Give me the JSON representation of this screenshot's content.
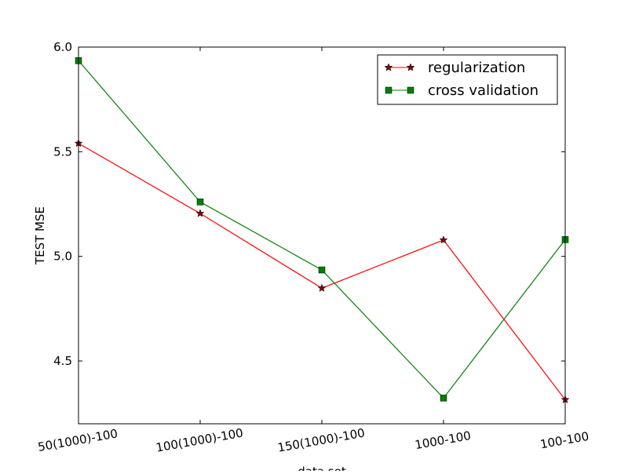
{
  "chart_data": {
    "type": "line",
    "categories": [
      "50(1000)-100",
      "100(1000)-100",
      "150(1000)-100",
      "1000-100",
      "100-100"
    ],
    "series": [
      {
        "name": "regularization",
        "values": [
          5.54,
          5.205,
          4.848,
          5.078,
          4.315
        ],
        "color": "#ff0000",
        "marker": "star"
      },
      {
        "name": "cross validation",
        "values": [
          5.935,
          5.26,
          4.935,
          4.323,
          5.08
        ],
        "color": "#008000",
        "marker": "square"
      }
    ],
    "xlabel": "data set",
    "ylabel": "TEST MSE",
    "ylim": [
      4.2,
      6.0
    ],
    "yticks": [
      "6.0",
      "5.5",
      "5.0",
      "4.5"
    ],
    "ytick_values": [
      6.0,
      5.5,
      5.0,
      4.5
    ],
    "grid": false,
    "legend_position": "top-right"
  }
}
